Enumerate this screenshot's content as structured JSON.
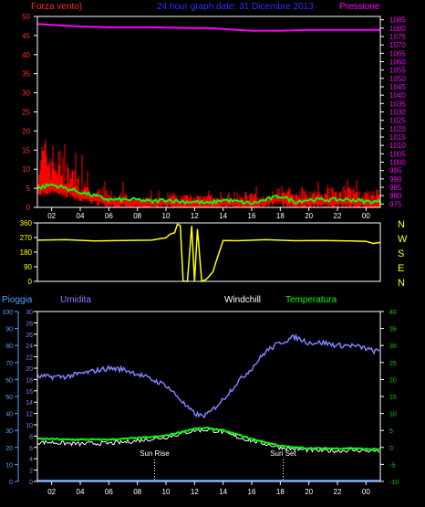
{
  "title": "24 hour graph date: 31 Dicembre 2013",
  "colors": {
    "background": "#000000",
    "frame": "#ffffff",
    "wind": "#ff0000",
    "wind_avg": "#00ff00",
    "pressure": "#ff00ff",
    "direction": "#ffff00",
    "humidity": "#8080ff",
    "temperature": "#00ff00",
    "windchill": "#ffffff",
    "rain": "#2080ff",
    "title": "#3030ff",
    "left_axis": "#ff3030",
    "right_axis": "#ff00ff",
    "bottom_left_axis": "#4da6ff",
    "bottom_right_axis": "#00cc00"
  },
  "legend": {
    "wind": "Forza vento)",
    "pressure": "Pressione",
    "rain": "Pioggia",
    "humidity": "Umidita",
    "windchill": "Windchill",
    "temperature": "Temperatura",
    "sunrise": "Sun Rise",
    "sunset": "Sun Set"
  },
  "x_ticks": [
    "02",
    "04",
    "06",
    "08",
    "10",
    "12",
    "14",
    "16",
    "18",
    "20",
    "22",
    "00"
  ],
  "chart_data": [
    {
      "type": "line",
      "panel": "wind_pressure",
      "x_range": [
        1,
        25
      ],
      "x_unit": "hour",
      "left_axis": {
        "ticks": [
          0,
          5,
          10,
          15,
          20,
          25,
          30,
          35,
          40,
          45,
          50
        ],
        "ylim": [
          0,
          50
        ]
      },
      "right_axis": {
        "ticks": [
          975,
          980,
          985,
          990,
          995,
          1000,
          1005,
          1010,
          1015,
          1020,
          1025,
          1030,
          1035,
          1040,
          1045,
          1050,
          1055,
          1060,
          1065,
          1070,
          1075,
          1080,
          1085
        ],
        "ylim": [
          973,
          1087
        ]
      },
      "series": [
        {
          "name": "Forza vento)",
          "axis": "left",
          "style": "bars",
          "x": [
            1,
            1.5,
            2,
            2.5,
            3,
            3.5,
            4,
            4.5,
            5,
            5.5,
            6,
            6.5,
            7,
            7.5,
            8,
            8.5,
            9,
            9.5,
            10,
            10.5,
            11,
            11.5,
            12,
            12.5,
            13,
            13.5,
            14,
            14.5,
            15,
            15.5,
            16,
            16.5,
            17,
            17.5,
            18,
            18.5,
            19,
            19.5,
            20,
            20.5,
            21,
            21.5,
            22,
            22.5,
            23,
            23.5,
            24,
            24.5,
            25
          ],
          "values": [
            11,
            13,
            12,
            11,
            9,
            7,
            7,
            4,
            3,
            4,
            3,
            2,
            3,
            2,
            2,
            2,
            2,
            2,
            2,
            3,
            2,
            3,
            3,
            2,
            3,
            2,
            2,
            2,
            2,
            3,
            3,
            2,
            2,
            3,
            3,
            4,
            3,
            4,
            4,
            3,
            3,
            4,
            3,
            4,
            4,
            3,
            3,
            3,
            4
          ]
        },
        {
          "name": "",
          "axis": "left",
          "style": "line",
          "x": [
            1,
            2,
            3,
            4,
            5,
            6,
            7,
            8,
            9,
            10,
            11,
            12,
            13,
            14,
            15,
            16,
            17,
            18,
            19,
            20,
            21,
            22,
            23,
            24,
            25
          ],
          "values": [
            5,
            6,
            5,
            4,
            3,
            2,
            2,
            2,
            1.5,
            2,
            1.5,
            1.5,
            1,
            2,
            1.5,
            1,
            2,
            3,
            1.5,
            2,
            2,
            2,
            2,
            1.5,
            1.5
          ]
        },
        {
          "name": "Pressione",
          "axis": "right",
          "style": "line",
          "x": [
            1,
            2,
            3,
            4,
            5,
            6,
            7,
            8,
            9,
            10,
            11,
            12,
            13,
            14,
            15,
            16,
            17,
            18,
            19,
            20,
            21,
            22,
            23,
            24,
            25
          ],
          "values": [
            1082.5,
            1082,
            1081.5,
            1081,
            1080.8,
            1080.5,
            1080.5,
            1080.5,
            1080.5,
            1080.3,
            1080.2,
            1080,
            1080,
            1079.5,
            1079,
            1078.5,
            1078.5,
            1078.5,
            1078.7,
            1079,
            1079,
            1079,
            1079,
            1079,
            1079
          ]
        }
      ]
    },
    {
      "type": "line",
      "panel": "wind_direction",
      "x_range": [
        1,
        25
      ],
      "left_axis": {
        "ticks": [
          0,
          90,
          180,
          270,
          360
        ],
        "ylim": [
          0,
          360
        ]
      },
      "right_labels": [
        "N",
        "W",
        "S",
        "E",
        "N"
      ],
      "series": [
        {
          "name": "",
          "style": "line",
          "x": [
            1,
            3,
            5,
            7,
            9,
            9.5,
            10,
            10.3,
            10.6,
            10.8,
            11,
            11.2,
            11.5,
            11.8,
            12,
            12.2,
            12.5,
            12.8,
            13,
            13.3,
            13.5,
            14,
            15,
            17,
            19,
            21,
            23,
            24,
            24.5,
            25
          ],
          "values": [
            255,
            255,
            250,
            250,
            255,
            260,
            270,
            290,
            300,
            350,
            345,
            0,
            0,
            340,
            0,
            320,
            0,
            10,
            30,
            60,
            120,
            250,
            252,
            255,
            252,
            250,
            250,
            245,
            235,
            238
          ]
        }
      ]
    },
    {
      "type": "line",
      "panel": "temperature_humidity",
      "x_range": [
        1,
        25
      ],
      "outer_left_axis": {
        "name": "Pioggia",
        "ticks": [
          0,
          10,
          20,
          30,
          40,
          50,
          60,
          70,
          80,
          90,
          100
        ],
        "ylim": [
          0,
          100
        ]
      },
      "inner_left_axis": {
        "name": "Umidita",
        "ticks": [
          0,
          2,
          4,
          6,
          8,
          10,
          12,
          14,
          16,
          18,
          20,
          22,
          24,
          26,
          28,
          30
        ],
        "ylim": [
          0,
          30
        ]
      },
      "right_axis": {
        "name": "Temperatura",
        "ticks": [
          -10,
          -5,
          0,
          5,
          10,
          15,
          20,
          25,
          30,
          35,
          40
        ],
        "ylim": [
          -10,
          40
        ]
      },
      "sunrise_hour": 9.2,
      "sunset_hour": 18.2,
      "series": [
        {
          "name": "Umidita",
          "axis": "inner_left",
          "x": [
            1,
            2,
            3,
            4,
            5,
            6,
            7,
            8,
            9,
            10,
            11,
            11.5,
            12,
            12.5,
            13,
            14,
            15,
            16,
            17,
            18,
            18.5,
            19,
            19.5,
            20,
            21,
            22,
            23,
            24,
            24.5,
            25
          ],
          "values": [
            18.5,
            18.5,
            18.5,
            19,
            19.5,
            20,
            19.8,
            19,
            18,
            17,
            14.5,
            13,
            12,
            11.5,
            12,
            14.5,
            17.5,
            20,
            23,
            24.5,
            25,
            25.5,
            25,
            24.5,
            24.5,
            24,
            24,
            23.5,
            23,
            23
          ]
        },
        {
          "name": "Temperatura",
          "axis": "right",
          "x": [
            1,
            2,
            3,
            4,
            5,
            6,
            7,
            8,
            9,
            10,
            11,
            12,
            13,
            14,
            15,
            16,
            17,
            18,
            19,
            20,
            21,
            22,
            23,
            24,
            25
          ],
          "values": [
            2.5,
            2.5,
            2.3,
            2.3,
            2.3,
            2.3,
            2.5,
            2.8,
            3,
            3.5,
            4.5,
            5.5,
            5.7,
            5,
            3.8,
            2.5,
            1.5,
            0.5,
            0,
            -0.2,
            -0.3,
            -0.3,
            -0.2,
            -0.5,
            -0.5
          ]
        },
        {
          "name": "Windchill",
          "axis": "right",
          "x": [
            1,
            2,
            3,
            4,
            5,
            6,
            7,
            8,
            9,
            10,
            11,
            12,
            13,
            14,
            15,
            16,
            17,
            18,
            19,
            20,
            21,
            22,
            23,
            24,
            25
          ],
          "values": [
            1.5,
            1.5,
            1.2,
            1,
            1.2,
            1.2,
            1.5,
            2,
            2.5,
            3,
            4,
            5,
            5.2,
            4.5,
            3,
            2,
            1,
            0,
            -0.5,
            -0.8,
            -1,
            -1,
            -0.8,
            -1,
            -1
          ]
        },
        {
          "name": "Pioggia",
          "axis": "outer_left",
          "x": [
            1,
            25
          ],
          "values": [
            0,
            0
          ]
        }
      ]
    }
  ]
}
